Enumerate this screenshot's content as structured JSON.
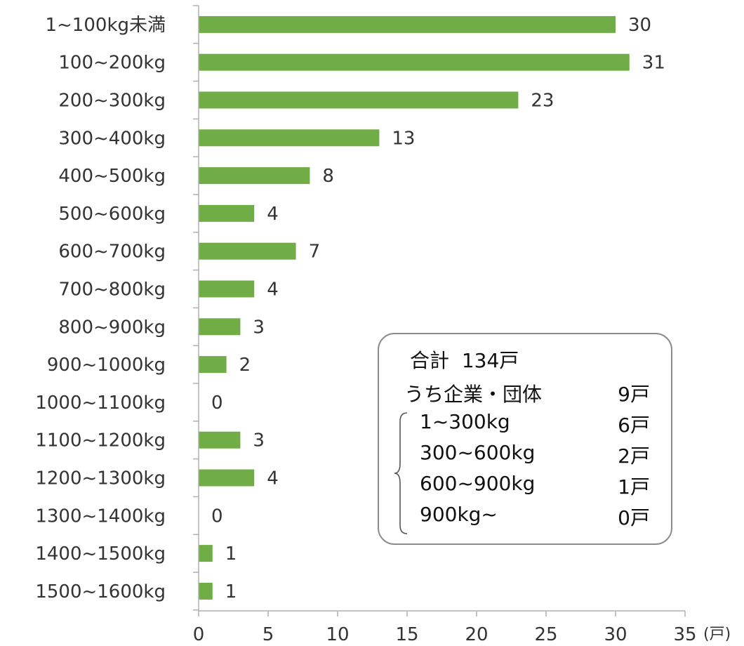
{
  "chart_data": {
    "type": "bar",
    "orientation": "horizontal",
    "categories": [
      "1~100kg未満",
      "100~200kg",
      "200~300kg",
      "300~400kg",
      "400~500kg",
      "500~600kg",
      "600~700kg",
      "700~800kg",
      "800~900kg",
      "900~1000kg",
      "1000~1100kg",
      "1100~1200kg",
      "1200~1300kg",
      "1300~1400kg",
      "1400~1500kg",
      "1500~1600kg"
    ],
    "values": [
      30,
      31,
      23,
      13,
      8,
      4,
      7,
      4,
      3,
      2,
      0,
      3,
      4,
      0,
      1,
      1
    ],
    "xlim": [
      0,
      35
    ],
    "xticks": [
      "0",
      "5",
      "10",
      "15",
      "20",
      "25",
      "30",
      "35"
    ],
    "unit": "(戸)",
    "bar_color": "#70ad47",
    "grid": false
  },
  "summary": {
    "total_label": "合計",
    "total_value": "134戸",
    "corp_label": "うち企業・団体",
    "corp_value": "9戸",
    "breakdown": [
      {
        "range": "1~300kg",
        "count": "6戸"
      },
      {
        "range": "300~600kg",
        "count": "2戸"
      },
      {
        "range": "600~900kg",
        "count": "1戸"
      },
      {
        "range": "900kg~",
        "count": "0戸"
      }
    ]
  }
}
